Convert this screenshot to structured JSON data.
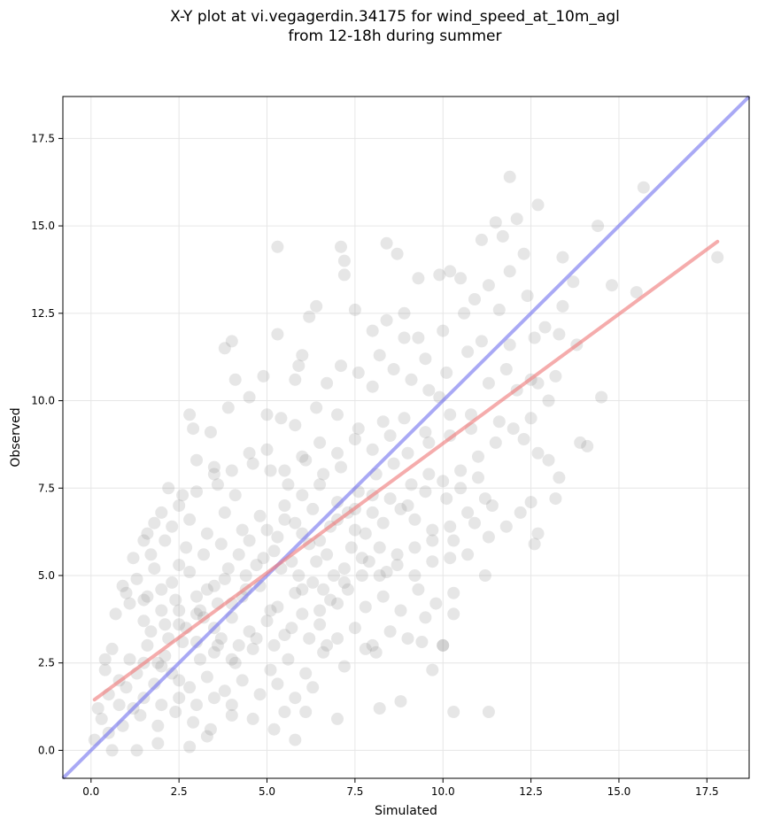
{
  "chart_data": {
    "type": "scatter",
    "title_line1": "X-Y plot at vi.vegagerdin.34175 for wind_speed_at_10m_agl",
    "title_line2": "from 12-18h during summer",
    "xlabel": "Simulated",
    "ylabel": "Observed",
    "xlim": [
      -0.8,
      18.7
    ],
    "ylim": [
      -0.8,
      18.7
    ],
    "xticks": [
      0.0,
      2.5,
      5.0,
      7.5,
      10.0,
      12.5,
      15.0,
      17.5
    ],
    "yticks": [
      0.0,
      2.5,
      5.0,
      7.5,
      10.0,
      12.5,
      15.0,
      17.5
    ],
    "xtick_labels": [
      "0.0",
      "2.5",
      "5.0",
      "7.5",
      "10.0",
      "12.5",
      "15.0",
      "17.5"
    ],
    "ytick_labels": [
      "0.0",
      "2.5",
      "5.0",
      "7.5",
      "10.0",
      "12.5",
      "15.0",
      "17.5"
    ],
    "grid": true,
    "point_color": "#808080",
    "identity_line": {
      "color": "#7b7bf0",
      "x": [
        -0.8,
        18.7
      ],
      "y": [
        -0.8,
        18.7
      ]
    },
    "fit_line": {
      "color": "#f08080",
      "x": [
        0.1,
        17.8
      ],
      "y": [
        1.45,
        14.55
      ]
    },
    "points": [
      [
        15.7,
        16.1
      ],
      [
        17.8,
        14.1
      ],
      [
        11.9,
        16.4
      ],
      [
        12.7,
        15.6
      ],
      [
        12.1,
        15.2
      ],
      [
        11.5,
        15.1
      ],
      [
        11.7,
        14.7
      ],
      [
        11.1,
        14.6
      ],
      [
        14.4,
        15.0
      ],
      [
        13.4,
        14.1
      ],
      [
        12.3,
        14.2
      ],
      [
        7.1,
        14.4
      ],
      [
        7.2,
        14.0
      ],
      [
        7.2,
        13.6
      ],
      [
        5.3,
        14.4
      ],
      [
        8.4,
        14.5
      ],
      [
        8.7,
        14.2
      ],
      [
        9.3,
        13.5
      ],
      [
        9.9,
        13.6
      ],
      [
        10.2,
        13.7
      ],
      [
        11.3,
        13.3
      ],
      [
        11.9,
        13.7
      ],
      [
        13.7,
        13.4
      ],
      [
        14.8,
        13.3
      ],
      [
        15.5,
        13.1
      ],
      [
        12.4,
        13.0
      ],
      [
        10.9,
        12.9
      ],
      [
        10.6,
        12.5
      ],
      [
        11.6,
        12.6
      ],
      [
        12.9,
        12.1
      ],
      [
        12.6,
        11.8
      ],
      [
        13.4,
        12.7
      ],
      [
        6.4,
        12.7
      ],
      [
        6.2,
        12.4
      ],
      [
        5.3,
        11.9
      ],
      [
        7.5,
        12.6
      ],
      [
        8.4,
        12.3
      ],
      [
        8.9,
        12.5
      ],
      [
        8.0,
        12.0
      ],
      [
        9.3,
        11.8
      ],
      [
        10.0,
        12.0
      ],
      [
        11.1,
        11.7
      ],
      [
        11.9,
        11.6
      ],
      [
        13.3,
        11.9
      ],
      [
        13.8,
        11.6
      ],
      [
        4.0,
        11.7
      ],
      [
        3.8,
        11.5
      ],
      [
        6.0,
        11.3
      ],
      [
        5.9,
        11.0
      ],
      [
        8.2,
        11.3
      ],
      [
        9.5,
        11.2
      ],
      [
        10.7,
        11.4
      ],
      [
        12.5,
        10.6
      ],
      [
        12.1,
        10.3
      ],
      [
        4.1,
        10.6
      ],
      [
        4.9,
        10.7
      ],
      [
        5.8,
        10.6
      ],
      [
        6.7,
        10.5
      ],
      [
        7.1,
        11.0
      ],
      [
        7.6,
        10.8
      ],
      [
        8.0,
        10.4
      ],
      [
        8.6,
        10.9
      ],
      [
        9.1,
        10.6
      ],
      [
        9.6,
        10.3
      ],
      [
        10.1,
        10.8
      ],
      [
        11.3,
        10.5
      ],
      [
        11.8,
        10.9
      ],
      [
        12.7,
        10.5
      ],
      [
        13.2,
        10.7
      ],
      [
        14.5,
        10.1
      ],
      [
        4.5,
        10.1
      ],
      [
        3.9,
        9.8
      ],
      [
        3.4,
        9.1
      ],
      [
        2.8,
        9.6
      ],
      [
        2.9,
        9.2
      ],
      [
        5.0,
        9.6
      ],
      [
        5.4,
        9.5
      ],
      [
        5.8,
        9.3
      ],
      [
        6.4,
        9.8
      ],
      [
        7.0,
        9.6
      ],
      [
        7.6,
        9.2
      ],
      [
        8.3,
        9.4
      ],
      [
        8.9,
        9.5
      ],
      [
        9.5,
        9.1
      ],
      [
        10.2,
        9.6
      ],
      [
        10.8,
        9.2
      ],
      [
        11.6,
        9.4
      ],
      [
        12.3,
        8.9
      ],
      [
        12.7,
        8.5
      ],
      [
        13.0,
        8.3
      ],
      [
        13.3,
        7.8
      ],
      [
        13.9,
        8.8
      ],
      [
        14.1,
        8.7
      ],
      [
        13.2,
        7.2
      ],
      [
        12.5,
        7.1
      ],
      [
        12.2,
        6.8
      ],
      [
        11.8,
        6.4
      ],
      [
        12.6,
        5.9
      ],
      [
        12.7,
        6.2
      ],
      [
        3.0,
        8.3
      ],
      [
        3.5,
        8.1
      ],
      [
        2.2,
        7.5
      ],
      [
        2.6,
        7.3
      ],
      [
        3.6,
        7.6
      ],
      [
        4.1,
        7.3
      ],
      [
        4.6,
        8.2
      ],
      [
        5.1,
        8.0
      ],
      [
        5.6,
        7.6
      ],
      [
        6.1,
        8.3
      ],
      [
        6.6,
        7.9
      ],
      [
        7.1,
        8.1
      ],
      [
        7.6,
        7.4
      ],
      [
        8.1,
        7.9
      ],
      [
        8.6,
        8.2
      ],
      [
        9.1,
        7.6
      ],
      [
        9.6,
        7.9
      ],
      [
        10.1,
        7.2
      ],
      [
        10.5,
        7.5
      ],
      [
        11.0,
        7.8
      ],
      [
        11.4,
        7.0
      ],
      [
        10.9,
        6.5
      ],
      [
        11.3,
        6.1
      ],
      [
        10.3,
        6.0
      ],
      [
        9.7,
        6.3
      ],
      [
        9.2,
        6.6
      ],
      [
        8.8,
        6.9
      ],
      [
        8.3,
        6.5
      ],
      [
        7.8,
        6.2
      ],
      [
        7.3,
        6.8
      ],
      [
        6.8,
        6.4
      ],
      [
        6.3,
        6.9
      ],
      [
        5.8,
        6.5
      ],
      [
        5.3,
        6.1
      ],
      [
        4.8,
        6.7
      ],
      [
        4.3,
        6.3
      ],
      [
        3.8,
        6.8
      ],
      [
        3.3,
        6.2
      ],
      [
        2.8,
        6.6
      ],
      [
        2.3,
        6.4
      ],
      [
        1.8,
        6.5
      ],
      [
        1.5,
        6.0
      ],
      [
        2.1,
        6.0
      ],
      [
        2.7,
        5.8
      ],
      [
        3.2,
        5.6
      ],
      [
        3.7,
        5.9
      ],
      [
        4.2,
        5.6
      ],
      [
        4.7,
        5.3
      ],
      [
        5.2,
        5.7
      ],
      [
        5.7,
        5.4
      ],
      [
        6.2,
        5.9
      ],
      [
        6.7,
        5.6
      ],
      [
        7.2,
        5.2
      ],
      [
        7.7,
        5.5
      ],
      [
        8.2,
        5.8
      ],
      [
        8.7,
        5.3
      ],
      [
        9.2,
        5.0
      ],
      [
        9.7,
        5.4
      ],
      [
        10.2,
        5.5
      ],
      [
        10.7,
        5.6
      ],
      [
        11.2,
        5.0
      ],
      [
        10.3,
        4.5
      ],
      [
        9.8,
        4.2
      ],
      [
        9.3,
        4.6
      ],
      [
        8.8,
        4.0
      ],
      [
        8.3,
        4.4
      ],
      [
        7.8,
        4.1
      ],
      [
        7.3,
        4.6
      ],
      [
        6.8,
        4.3
      ],
      [
        6.3,
        4.8
      ],
      [
        5.8,
        4.5
      ],
      [
        5.3,
        4.1
      ],
      [
        4.8,
        4.7
      ],
      [
        4.3,
        4.4
      ],
      [
        3.8,
        4.9
      ],
      [
        3.3,
        4.6
      ],
      [
        2.8,
        5.1
      ],
      [
        2.3,
        4.8
      ],
      [
        1.8,
        5.2
      ],
      [
        1.3,
        4.9
      ],
      [
        0.9,
        4.7
      ],
      [
        1.2,
        5.5
      ],
      [
        1.7,
        5.6
      ],
      [
        2.5,
        5.3
      ],
      [
        0.7,
        3.9
      ],
      [
        1.1,
        4.2
      ],
      [
        1.5,
        3.7
      ],
      [
        2.0,
        4.0
      ],
      [
        2.5,
        3.6
      ],
      [
        3.0,
        3.9
      ],
      [
        3.5,
        3.5
      ],
      [
        4.0,
        3.8
      ],
      [
        4.5,
        3.4
      ],
      [
        5.0,
        3.7
      ],
      [
        5.5,
        3.3
      ],
      [
        6.0,
        3.9
      ],
      [
        6.5,
        3.6
      ],
      [
        7.0,
        3.2
      ],
      [
        7.5,
        3.5
      ],
      [
        8.0,
        3.0
      ],
      [
        8.5,
        3.4
      ],
      [
        9.0,
        3.2
      ],
      [
        9.5,
        3.8
      ],
      [
        10.0,
        3.0
      ],
      [
        10.3,
        3.9
      ],
      [
        9.4,
        3.1
      ],
      [
        8.1,
        2.8
      ],
      [
        7.2,
        2.4
      ],
      [
        6.6,
        2.8
      ],
      [
        6.1,
        2.2
      ],
      [
        5.6,
        2.6
      ],
      [
        5.1,
        2.3
      ],
      [
        4.6,
        2.9
      ],
      [
        4.1,
        2.5
      ],
      [
        3.6,
        3.0
      ],
      [
        3.1,
        2.6
      ],
      [
        2.6,
        3.1
      ],
      [
        2.1,
        2.7
      ],
      [
        1.6,
        3.0
      ],
      [
        1.1,
        2.6
      ],
      [
        0.6,
        2.9
      ],
      [
        0.4,
        2.3
      ],
      [
        0.8,
        2.0
      ],
      [
        1.3,
        2.2
      ],
      [
        1.8,
        1.9
      ],
      [
        2.3,
        2.2
      ],
      [
        2.8,
        1.8
      ],
      [
        3.3,
        2.1
      ],
      [
        3.8,
        1.7
      ],
      [
        4.3,
        2.0
      ],
      [
        4.8,
        1.6
      ],
      [
        5.3,
        1.9
      ],
      [
        5.8,
        1.5
      ],
      [
        6.3,
        1.8
      ],
      [
        6.1,
        1.1
      ],
      [
        5.5,
        1.1
      ],
      [
        5.2,
        0.6
      ],
      [
        4.6,
        0.9
      ],
      [
        4.0,
        1.0
      ],
      [
        3.4,
        0.6
      ],
      [
        2.9,
        0.8
      ],
      [
        2.4,
        1.1
      ],
      [
        1.9,
        0.7
      ],
      [
        1.4,
        1.0
      ],
      [
        0.9,
        0.7
      ],
      [
        0.5,
        0.5
      ],
      [
        0.3,
        0.9
      ],
      [
        0.1,
        0.3
      ],
      [
        0.6,
        0.0
      ],
      [
        1.3,
        0.0
      ],
      [
        1.9,
        0.2
      ],
      [
        2.8,
        0.1
      ],
      [
        3.3,
        0.4
      ],
      [
        5.8,
        0.3
      ],
      [
        7.0,
        0.9
      ],
      [
        8.2,
        1.2
      ],
      [
        8.8,
        1.4
      ],
      [
        10.3,
        1.1
      ],
      [
        11.3,
        1.1
      ],
      [
        9.7,
        2.3
      ],
      [
        10.0,
        3.0
      ],
      [
        7.8,
        2.9
      ],
      [
        7.0,
        4.2
      ],
      [
        6.5,
        4.0
      ],
      [
        5.1,
        4.0
      ],
      [
        4.4,
        4.6
      ],
      [
        3.6,
        4.2
      ],
      [
        2.4,
        4.3
      ],
      [
        1.6,
        4.4
      ],
      [
        1.0,
        4.5
      ],
      [
        1.7,
        3.4
      ],
      [
        2.2,
        3.2
      ],
      [
        2.7,
        3.5
      ],
      [
        3.2,
        3.8
      ],
      [
        3.7,
        3.2
      ],
      [
        4.2,
        3.0
      ],
      [
        4.7,
        3.2
      ],
      [
        5.2,
        3.0
      ],
      [
        5.7,
        3.5
      ],
      [
        6.2,
        3.2
      ],
      [
        6.7,
        3.0
      ],
      [
        3.9,
        5.2
      ],
      [
        4.4,
        5.0
      ],
      [
        4.9,
        5.5
      ],
      [
        5.4,
        5.2
      ],
      [
        5.9,
        5.0
      ],
      [
        6.4,
        5.4
      ],
      [
        6.9,
        5.0
      ],
      [
        7.4,
        5.8
      ],
      [
        7.9,
        5.4
      ],
      [
        8.4,
        5.1
      ],
      [
        6.0,
        6.2
      ],
      [
        6.5,
        6.0
      ],
      [
        7.0,
        6.6
      ],
      [
        7.5,
        6.3
      ],
      [
        8.0,
        6.8
      ],
      [
        8.5,
        7.2
      ],
      [
        9.0,
        7.0
      ],
      [
        9.5,
        7.4
      ],
      [
        10.0,
        7.7
      ],
      [
        10.5,
        8.0
      ],
      [
        11.0,
        8.4
      ],
      [
        11.5,
        8.8
      ],
      [
        12.0,
        9.2
      ],
      [
        12.5,
        9.5
      ],
      [
        13.0,
        10.0
      ],
      [
        5.5,
        7.0
      ],
      [
        6.0,
        7.3
      ],
      [
        6.5,
        7.6
      ],
      [
        7.0,
        7.1
      ],
      [
        7.5,
        6.9
      ],
      [
        8.0,
        7.3
      ],
      [
        4.5,
        6.0
      ],
      [
        5.0,
        6.3
      ],
      [
        5.5,
        6.6
      ],
      [
        3.0,
        4.4
      ],
      [
        3.5,
        4.7
      ],
      [
        4.0,
        4.2
      ],
      [
        2.5,
        4.0
      ],
      [
        2.0,
        4.6
      ],
      [
        1.5,
        4.3
      ],
      [
        3.0,
        3.1
      ],
      [
        3.5,
        2.8
      ],
      [
        4.0,
        2.6
      ],
      [
        2.0,
        2.4
      ],
      [
        2.5,
        2.0
      ],
      [
        1.5,
        2.5
      ],
      [
        1.0,
        1.8
      ],
      [
        1.5,
        1.5
      ],
      [
        2.0,
        1.3
      ],
      [
        2.5,
        1.5
      ],
      [
        3.0,
        1.3
      ],
      [
        3.5,
        1.5
      ],
      [
        4.0,
        1.3
      ],
      [
        0.8,
        1.3
      ],
      [
        1.2,
        1.2
      ],
      [
        6.0,
        4.6
      ],
      [
        6.6,
        4.6
      ],
      [
        7.2,
        4.8
      ],
      [
        7.7,
        5.0
      ],
      [
        8.2,
        5.0
      ],
      [
        8.7,
        5.6
      ],
      [
        9.2,
        5.8
      ],
      [
        9.7,
        6.0
      ],
      [
        10.2,
        6.4
      ],
      [
        10.7,
        6.8
      ],
      [
        11.2,
        7.2
      ],
      [
        9.0,
        8.5
      ],
      [
        9.6,
        8.8
      ],
      [
        10.2,
        9.0
      ],
      [
        10.8,
        9.6
      ],
      [
        8.5,
        9.0
      ],
      [
        8.0,
        8.6
      ],
      [
        7.5,
        8.9
      ],
      [
        7.0,
        8.5
      ],
      [
        6.5,
        8.8
      ],
      [
        6.0,
        8.4
      ],
      [
        5.5,
        8.0
      ],
      [
        5.0,
        8.6
      ],
      [
        4.5,
        8.5
      ],
      [
        4.0,
        8.0
      ],
      [
        3.5,
        7.9
      ],
      [
        3.0,
        7.4
      ],
      [
        2.5,
        7.0
      ],
      [
        2.0,
        6.8
      ],
      [
        1.6,
        6.2
      ],
      [
        8.9,
        11.8
      ],
      [
        9.9,
        10.1
      ],
      [
        10.5,
        13.5
      ],
      [
        3.1,
        4.0
      ],
      [
        2.1,
        3.6
      ],
      [
        1.9,
        2.5
      ],
      [
        0.5,
        1.6
      ],
      [
        0.2,
        1.2
      ],
      [
        0.4,
        2.6
      ]
    ]
  }
}
